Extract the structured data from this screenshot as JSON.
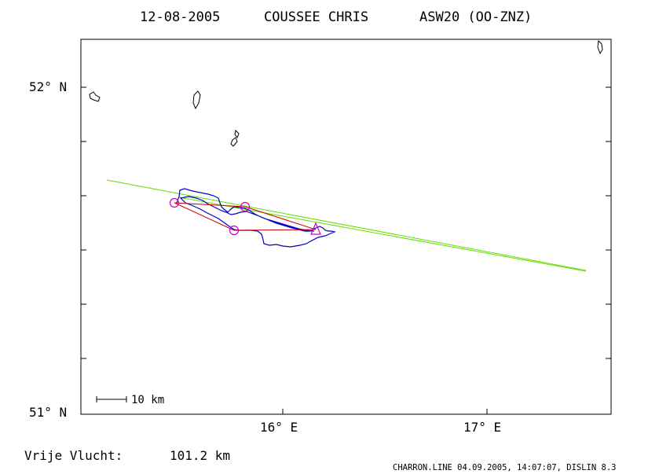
{
  "header": {
    "date": "12-08-2005",
    "pilot": "COUSSEE CHRIS",
    "glider": "ASW20 (OO-ZNZ)"
  },
  "axes": {
    "lat_labels": [
      "52° N",
      "51° N"
    ],
    "lon_labels": [
      "16° E",
      "17° E"
    ],
    "lat_range": [
      51.0,
      52.2
    ],
    "lon_range": [
      15.0,
      17.6
    ]
  },
  "scale_bar": {
    "label": "10 km"
  },
  "footer": {
    "free_flight_label": "Vrije Vlucht:",
    "free_flight_value": "101.2 km",
    "credit": "CHARRON.LINE 04.09.2005, 14:07:07, DISLIN 8.3"
  },
  "colors": {
    "track": "#0000cc",
    "task": "#cc0000",
    "turnpoints": "#cc00cc",
    "line": "#66dd00",
    "frame": "#000000",
    "background": "#ffffff"
  }
}
